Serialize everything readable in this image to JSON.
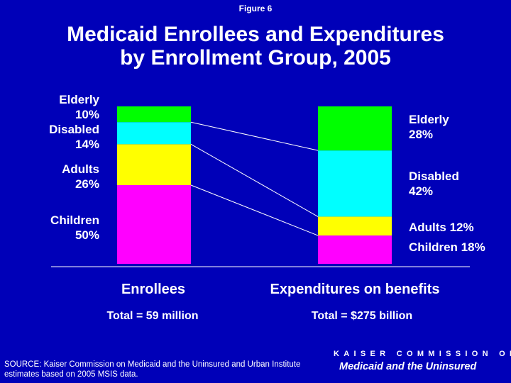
{
  "figure_label": "Figure 6",
  "title_line1": "Medicaid Enrollees and Expenditures",
  "title_line2": "by Enrollment Group, 2005",
  "colors": {
    "background": "#0000b8",
    "elderly": "#00ff00",
    "disabled": "#00ffff",
    "adults": "#ffff00",
    "children": "#ff00ff",
    "text": "#ffffff"
  },
  "chart_data": {
    "type": "bar",
    "stacked": true,
    "percent_stacked": true,
    "categories": [
      "Enrollees",
      "Expenditures on benefits"
    ],
    "series": [
      {
        "name": "Children",
        "values": [
          50,
          18
        ]
      },
      {
        "name": "Adults",
        "values": [
          26,
          12
        ]
      },
      {
        "name": "Disabled",
        "values": [
          14,
          42
        ]
      },
      {
        "name": "Elderly",
        "values": [
          10,
          28
        ]
      }
    ],
    "ylim": [
      0,
      100
    ],
    "totals": [
      "Total = 59 million",
      "Total = $275 billion"
    ],
    "left_labels": {
      "elderly": [
        "Elderly",
        "10%"
      ],
      "disabled": [
        "Disabled",
        "14%"
      ],
      "adults": [
        "Adults",
        "26%"
      ],
      "children": [
        "Children",
        "50%"
      ]
    },
    "right_labels": {
      "elderly": [
        "Elderly",
        "28%"
      ],
      "disabled": [
        "Disabled",
        "42%"
      ],
      "adults": "Adults 12%",
      "children": "Children 18%"
    }
  },
  "source": "SOURCE: Kaiser Commission on Medicaid and the Uninsured and Urban Institute estimates based on 2005 MSIS data.",
  "logo_top": "KAISER COMMISSION ON",
  "logo_bottom": "Medicaid and the Uninsured"
}
